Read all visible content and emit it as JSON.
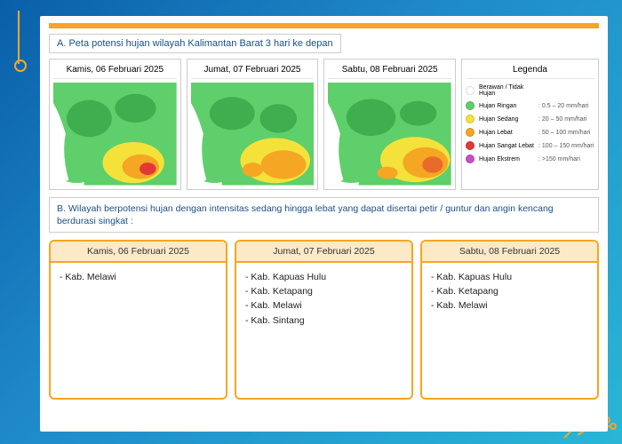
{
  "sectionA": {
    "title": "A. Peta potensi hujan wilayah Kalimantan Barat 3 hari ke depan",
    "maps": [
      {
        "header": "Kamis, 06 Februari 2025"
      },
      {
        "header": "Jumat, 07 Februari 2025"
      },
      {
        "header": "Sabtu, 08 Februari 2025"
      }
    ],
    "legend": {
      "header": "Legenda",
      "items": [
        {
          "color": "#ffffff",
          "label": "Berawan / Tidak Hujan",
          "range": ""
        },
        {
          "color": "#5fcf6b",
          "label": "Hujan Ringan",
          "range": ": 0.5 – 20 mm/hari"
        },
        {
          "color": "#f4e23b",
          "label": "Hujan Sedang",
          "range": ": 20 – 50 mm/hari"
        },
        {
          "color": "#f5a623",
          "label": "Hujan Lebat",
          "range": ": 50 – 100 mm/hari"
        },
        {
          "color": "#e23838",
          "label": "Hujan Sangat Lebat",
          "range": ": 100 – 150 mm/hari"
        },
        {
          "color": "#c94fc7",
          "label": "Hujan Ekstrem",
          "range": ": >150 mm/hari"
        }
      ]
    }
  },
  "sectionB": {
    "title": "B. Wilayah berpotensi hujan dengan intensitas sedang hingga lebat yang dapat disertai petir / guntur dan angin kencang berdurasi singkat :",
    "cards": [
      {
        "header": "Kamis, 06 Februari 2025",
        "items": [
          "- Kab. Melawi"
        ]
      },
      {
        "header": "Jumat, 07 Februari 2025",
        "items": [
          "- Kab. Kapuas Hulu",
          "- Kab. Ketapang",
          "- Kab. Melawi",
          "- Kab. Sintang"
        ]
      },
      {
        "header": "Sabtu, 08 Februari 2025",
        "items": [
          "- Kab. Kapuas Hulu",
          "- Kab. Ketapang",
          "- Kab. Melawi"
        ]
      }
    ]
  },
  "colors": {
    "green": "#5fcf6b",
    "darkgreen": "#3fae4e",
    "yellow": "#f4e23b",
    "orange": "#f5a623",
    "red": "#e23838"
  }
}
